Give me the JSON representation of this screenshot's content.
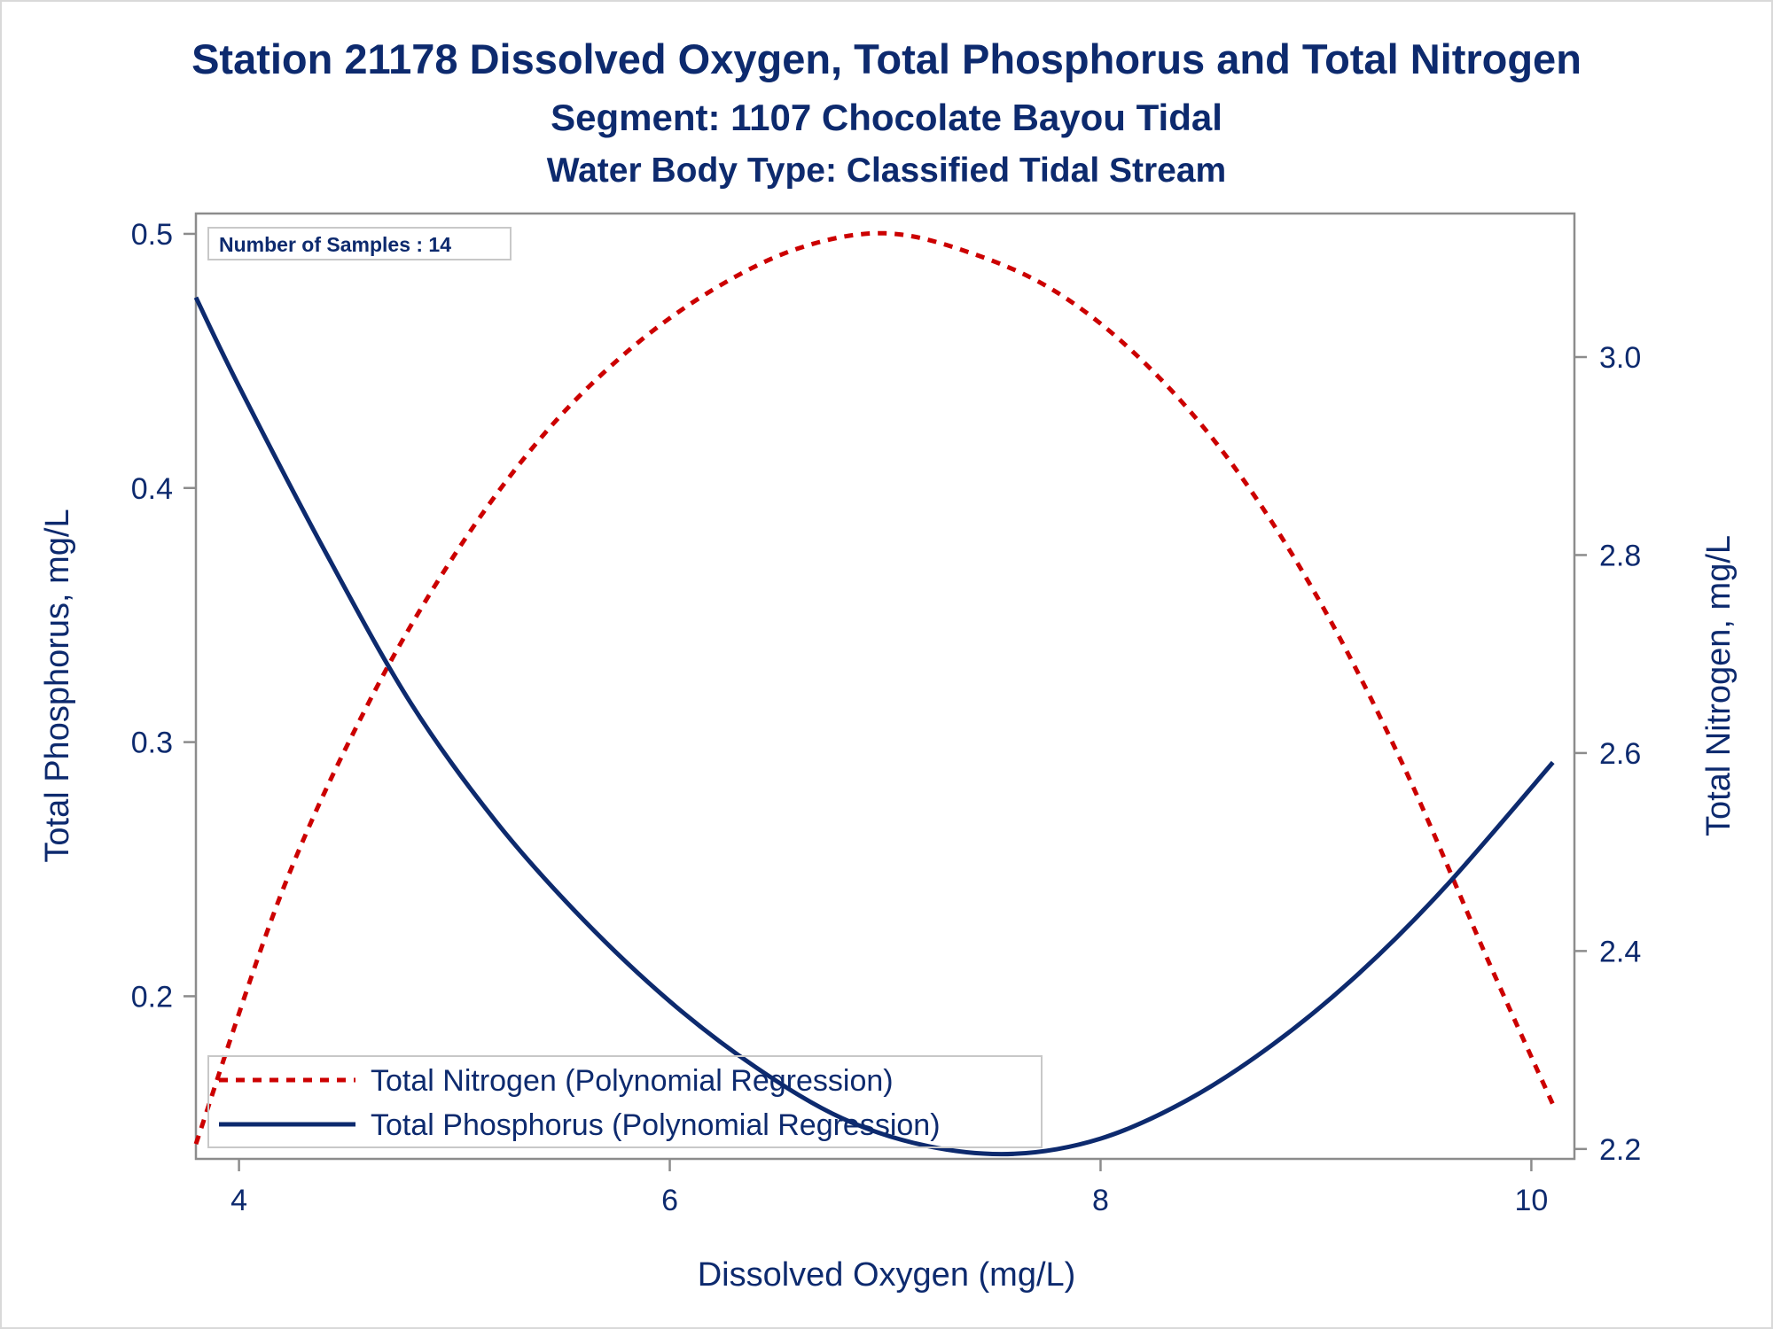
{
  "titles": {
    "line1": "Station 21178  Dissolved Oxygen, Total Phosphorus and Total Nitrogen",
    "line2": "Segment: 1107  Chocolate Bayou Tidal",
    "line3": "Water Body Type: Classified Tidal Stream"
  },
  "annotation": "Number of Samples : 14",
  "colors": {
    "text": "#0d2a6e",
    "phosphorus": "#0d2a6e",
    "nitrogen": "#cc0000",
    "frame": "#8c8c8c"
  },
  "chart_data": {
    "type": "line",
    "grid": false,
    "legend_placement": "bottom-left",
    "xlabel": "Dissolved Oxygen (mg/L)",
    "ylabel_left": "Total Phosphorus, mg/L",
    "ylabel_right": "Total Nitrogen, mg/L",
    "xlim": [
      3.8,
      10.2
    ],
    "ylim_left": [
      0.136,
      0.508
    ],
    "ylim_right": [
      2.19,
      3.145
    ],
    "x_ticks": [
      4,
      6,
      8,
      10
    ],
    "x_tick_labels": [
      "4",
      "6",
      "8",
      "10"
    ],
    "y_left_ticks": [
      0.2,
      0.3,
      0.4,
      0.5
    ],
    "y_left_tick_labels": [
      "0.2",
      "0.3",
      "0.4",
      "0.5"
    ],
    "y_right_ticks": [
      2.2,
      2.4,
      2.6,
      2.8,
      3.0
    ],
    "y_right_tick_labels": [
      "2.2",
      "2.4",
      "2.6",
      "2.8",
      "3.0"
    ],
    "series": [
      {
        "name": "Total Nitrogen (Polynomial Regression)",
        "axis": "right",
        "style": "dashed",
        "x": [
          3.8,
          4.2,
          4.6,
          5.0,
          5.4,
          5.8,
          6.2,
          6.6,
          7.0,
          7.4,
          7.8,
          8.2,
          8.6,
          9.0,
          9.4,
          9.8,
          10.1
        ],
        "y": [
          2.205,
          2.46,
          2.65,
          2.8,
          2.918,
          3.005,
          3.068,
          3.11,
          3.125,
          3.105,
          3.065,
          2.995,
          2.895,
          2.76,
          2.59,
          2.39,
          2.245
        ]
      },
      {
        "name": "Total Phosphorus (Polynomial Regression)",
        "axis": "left",
        "style": "solid",
        "x": [
          3.8,
          4.0,
          4.4,
          4.8,
          5.2,
          5.6,
          6.0,
          6.4,
          6.8,
          7.2,
          7.6,
          8.0,
          8.4,
          8.8,
          9.2,
          9.6,
          10.1
        ],
        "y": [
          0.475,
          0.44,
          0.375,
          0.315,
          0.268,
          0.23,
          0.198,
          0.172,
          0.152,
          0.141,
          0.138,
          0.144,
          0.159,
          0.181,
          0.209,
          0.243,
          0.292
        ]
      }
    ]
  }
}
